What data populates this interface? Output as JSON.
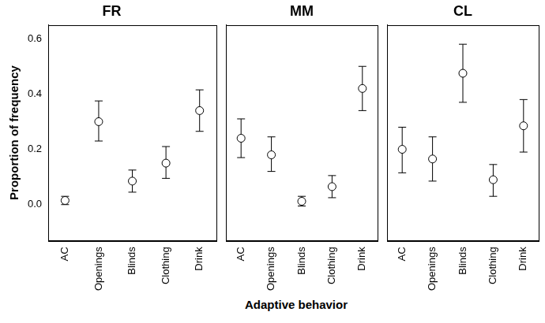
{
  "chart_data": [
    {
      "type": "scatter",
      "title": "FR",
      "ylabel": "Proportion of frequency",
      "categories": [
        "AC",
        "Openings",
        "Blinds",
        "Clothing",
        "Drink"
      ],
      "values": [
        0.015,
        0.3,
        0.085,
        0.15,
        0.34
      ],
      "lower": [
        0.0,
        0.23,
        0.045,
        0.095,
        0.265
      ],
      "upper": [
        0.03,
        0.375,
        0.125,
        0.21,
        0.415
      ],
      "color": "#000000",
      "marker": "circle",
      "ylim": [
        -0.13,
        0.65
      ],
      "yticks": [
        {
          "value": 0,
          "label": "0.0"
        },
        0.2,
        0.4,
        0.6
      ],
      "grid": false
    },
    {
      "type": "scatter",
      "title": "MM",
      "xlabel": "Adaptive behavior",
      "categories": [
        "AC",
        "Openings",
        "Blinds",
        "Clothing",
        "Drink"
      ],
      "values": [
        0.24,
        0.18,
        0.012,
        0.065,
        0.42
      ],
      "lower": [
        0.17,
        0.12,
        -0.005,
        0.025,
        0.34
      ],
      "upper": [
        0.31,
        0.245,
        0.03,
        0.105,
        0.5
      ],
      "color": "#000000",
      "marker": "circle",
      "ylim": [
        -0.13,
        0.65
      ],
      "yticks": [
        {
          "value": 0,
          "label": "0.0"
        },
        0.2,
        0.4,
        0.6
      ],
      "grid": false,
      "tick_labels": "x"
    },
    {
      "type": "scatter",
      "title": "CL",
      "categories": [
        "AC",
        "Openings",
        "Blinds",
        "Clothing",
        "Drink"
      ],
      "values": [
        0.2,
        0.165,
        0.475,
        0.09,
        0.285
      ],
      "lower": [
        0.115,
        0.085,
        0.37,
        0.03,
        0.19
      ],
      "upper": [
        0.28,
        0.245,
        0.58,
        0.145,
        0.38
      ],
      "color": "#000000",
      "marker": "circle",
      "ylim": [
        -0.13,
        0.65
      ],
      "yticks": [
        {
          "value": 0,
          "label": "0.0"
        },
        0.2,
        0.4,
        0.6
      ],
      "grid": false,
      "tick_labels": "x"
    }
  ]
}
